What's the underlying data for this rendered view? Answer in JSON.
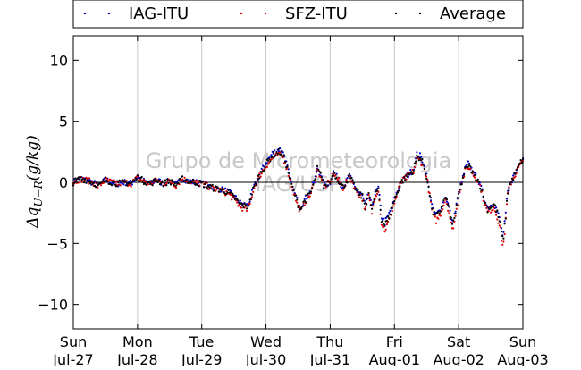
{
  "chart_data": {
    "type": "scatter",
    "title": "",
    "ylabel": "Δq_{U-R} (g/kg)",
    "xlabel": "",
    "ylim": [
      -12,
      12
    ],
    "y_ticks": [
      10,
      5,
      0,
      -5,
      -10
    ],
    "y_tick_labels": [
      "10",
      "5",
      "0",
      "−5",
      "−10"
    ],
    "x_range_days": [
      0,
      7
    ],
    "x_ticks": [
      {
        "day": 0,
        "line1": "Sun",
        "line2": "Jul-27"
      },
      {
        "day": 1,
        "line1": "Mon",
        "line2": "Jul-28"
      },
      {
        "day": 2,
        "line1": "Tue",
        "line2": "Jul-29"
      },
      {
        "day": 3,
        "line1": "Wed",
        "line2": "Jul-30"
      },
      {
        "day": 4,
        "line1": "Thu",
        "line2": "Jul-31"
      },
      {
        "day": 5,
        "line1": "Fri",
        "line2": "Aug-01"
      },
      {
        "day": 6,
        "line1": "Sat",
        "line2": "Aug-02"
      },
      {
        "day": 7,
        "line1": "Sun",
        "line2": "Aug-03"
      }
    ],
    "grid": "vertical",
    "zero_line": true,
    "legend_position": "top",
    "watermark_lines": [
      "Grupo de Micrometeorologia",
      "IAG/USP"
    ],
    "series": [
      {
        "name": "IAG-ITU",
        "color": "#0000cc",
        "offset": 0.15
      },
      {
        "name": "SFZ-ITU",
        "color": "#dd0000",
        "offset": -0.2
      },
      {
        "name": "Average",
        "color": "#000000",
        "offset": 0.0
      }
    ],
    "curve_points": [
      [
        0.0,
        0.0
      ],
      [
        0.1,
        0.3
      ],
      [
        0.2,
        0.2
      ],
      [
        0.3,
        0.0
      ],
      [
        0.4,
        -0.3
      ],
      [
        0.5,
        0.2
      ],
      [
        0.6,
        0.0
      ],
      [
        0.7,
        -0.1
      ],
      [
        0.8,
        0.0
      ],
      [
        0.9,
        -0.1
      ],
      [
        1.0,
        0.4
      ],
      [
        1.1,
        0.1
      ],
      [
        1.2,
        -0.1
      ],
      [
        1.3,
        0.2
      ],
      [
        1.4,
        -0.1
      ],
      [
        1.5,
        0.1
      ],
      [
        1.6,
        -0.2
      ],
      [
        1.7,
        0.3
      ],
      [
        1.8,
        0.1
      ],
      [
        1.9,
        0.0
      ],
      [
        2.0,
        -0.1
      ],
      [
        2.1,
        -0.3
      ],
      [
        2.2,
        -0.5
      ],
      [
        2.3,
        -0.6
      ],
      [
        2.4,
        -0.8
      ],
      [
        2.5,
        -1.2
      ],
      [
        2.6,
        -1.8
      ],
      [
        2.7,
        -2.0
      ],
      [
        2.75,
        -1.6
      ],
      [
        2.8,
        -0.6
      ],
      [
        2.9,
        0.6
      ],
      [
        3.0,
        1.5
      ],
      [
        3.1,
        2.2
      ],
      [
        3.2,
        2.5
      ],
      [
        3.25,
        2.4
      ],
      [
        3.3,
        1.8
      ],
      [
        3.4,
        -0.2
      ],
      [
        3.5,
        -1.8
      ],
      [
        3.55,
        -2.1
      ],
      [
        3.6,
        -1.5
      ],
      [
        3.7,
        -0.8
      ],
      [
        3.75,
        0.0
      ],
      [
        3.8,
        1.1
      ],
      [
        3.85,
        0.6
      ],
      [
        3.9,
        -0.3
      ],
      [
        4.0,
        0.0
      ],
      [
        4.05,
        0.8
      ],
      [
        4.1,
        0.4
      ],
      [
        4.2,
        -0.4
      ],
      [
        4.3,
        0.5
      ],
      [
        4.4,
        -0.6
      ],
      [
        4.5,
        -1.2
      ],
      [
        4.55,
        -2.0
      ],
      [
        4.6,
        -1.0
      ],
      [
        4.65,
        -2.2
      ],
      [
        4.7,
        -1.0
      ],
      [
        4.75,
        -0.5
      ],
      [
        4.8,
        -3.0
      ],
      [
        4.85,
        -3.5
      ],
      [
        4.9,
        -3.0
      ],
      [
        5.0,
        -1.5
      ],
      [
        5.1,
        0.0
      ],
      [
        5.2,
        0.5
      ],
      [
        5.3,
        1.0
      ],
      [
        5.35,
        2.1
      ],
      [
        5.4,
        2.0
      ],
      [
        5.45,
        1.5
      ],
      [
        5.5,
        0.5
      ],
      [
        5.55,
        -1.0
      ],
      [
        5.6,
        -2.5
      ],
      [
        5.65,
        -2.8
      ],
      [
        5.7,
        -2.5
      ],
      [
        5.75,
        -1.8
      ],
      [
        5.8,
        -1.2
      ],
      [
        5.85,
        -2.2
      ],
      [
        5.9,
        -3.5
      ],
      [
        5.95,
        -2.5
      ],
      [
        6.0,
        -1.0
      ],
      [
        6.05,
        0.0
      ],
      [
        6.1,
        1.0
      ],
      [
        6.15,
        1.4
      ],
      [
        6.2,
        1.0
      ],
      [
        6.25,
        0.5
      ],
      [
        6.3,
        0.2
      ],
      [
        6.35,
        -0.5
      ],
      [
        6.4,
        -1.5
      ],
      [
        6.45,
        -2.2
      ],
      [
        6.5,
        -2.0
      ],
      [
        6.55,
        -1.8
      ],
      [
        6.6,
        -2.5
      ],
      [
        6.65,
        -3.5
      ],
      [
        6.68,
        -4.6
      ],
      [
        6.7,
        -4.4
      ],
      [
        6.73,
        -3.0
      ],
      [
        6.76,
        -1.0
      ],
      [
        6.8,
        -0.2
      ],
      [
        6.85,
        0.4
      ],
      [
        6.9,
        0.9
      ],
      [
        6.95,
        1.5
      ],
      [
        7.0,
        1.9
      ]
    ]
  }
}
